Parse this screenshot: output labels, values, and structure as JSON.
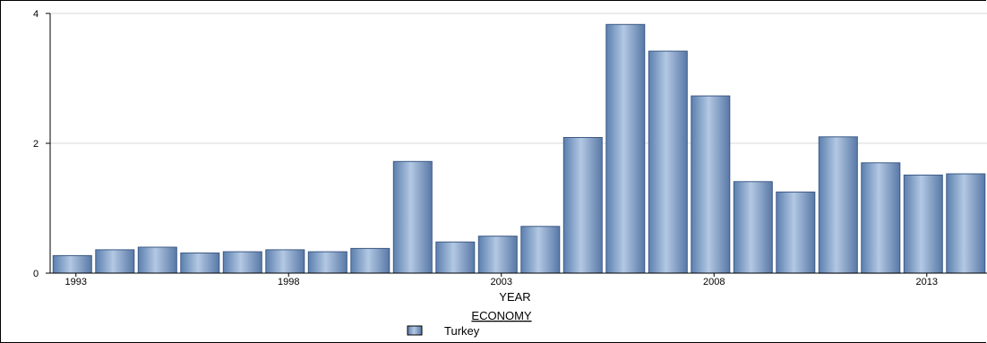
{
  "chart_data": {
    "type": "bar",
    "x": [
      1993,
      1994,
      1995,
      1996,
      1997,
      1998,
      1999,
      2000,
      2001,
      2002,
      2003,
      2004,
      2005,
      2006,
      2007,
      2008,
      2009,
      2010,
      2011,
      2012,
      2013,
      2014
    ],
    "series": [
      {
        "name": "Turkey",
        "values": [
          0.27,
          0.36,
          0.4,
          0.31,
          0.33,
          0.36,
          0.33,
          0.38,
          1.72,
          0.48,
          0.57,
          0.72,
          2.09,
          3.83,
          3.42,
          2.73,
          1.41,
          1.25,
          2.1,
          1.7,
          1.51,
          1.53
        ],
        "color": "#7f9fc8"
      }
    ],
    "xlabel": "YEAR",
    "ylabel": "",
    "ylim": [
      0,
      4
    ],
    "y_ticks": [
      "0",
      "2",
      "4"
    ],
    "x_ticks": [
      "1993",
      "1998",
      "2003",
      "2008",
      "2013"
    ],
    "legend_title": "ECONOMY",
    "legend_placement": "bottom-center",
    "grid": true
  }
}
